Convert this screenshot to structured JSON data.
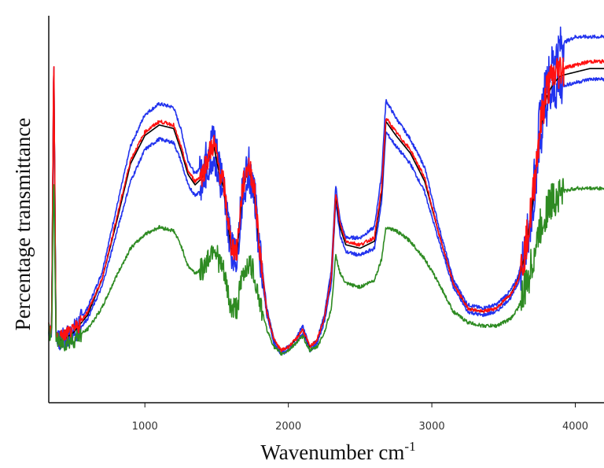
{
  "chart_data": {
    "type": "line",
    "title": "",
    "xlabel": "Wavenumber cm",
    "xlabel_sup": "-1",
    "ylabel": "Percentage transmittance",
    "xlim": [
      330,
      4200
    ],
    "ylim": [
      0,
      100
    ],
    "x_ticks": [
      1000,
      2000,
      3000,
      4000
    ],
    "x_tick_labels": [
      "1000",
      "2000",
      "3000",
      "4000"
    ],
    "y_tick_labels": [],
    "grid": false,
    "legend": "none",
    "series": [
      {
        "color": "#2233ee",
        "x": [
          350,
          365,
          380,
          400,
          430,
          500,
          600,
          700,
          800,
          900,
          1000,
          1100,
          1200,
          1250,
          1300,
          1350,
          1400,
          1450,
          1480,
          1520,
          1550,
          1600,
          1640,
          1680,
          1720,
          1760,
          1800,
          1850,
          1900,
          1950,
          2000,
          2050,
          2100,
          2150,
          2200,
          2250,
          2300,
          2330,
          2360,
          2400,
          2500,
          2600,
          2650,
          2680,
          2750,
          2850,
          2950,
          3050,
          3150,
          3250,
          3350,
          3450,
          3550,
          3600,
          3650,
          3700,
          3750,
          3800,
          3850,
          3900,
          4000,
          4100,
          4200
        ],
        "values": [
          12,
          90,
          10,
          8,
          9,
          11,
          17,
          27,
          45,
          63,
          72,
          75,
          74,
          68,
          59,
          55,
          58,
          64,
          67,
          59,
          54,
          36,
          34,
          52,
          60,
          54,
          35,
          17,
          8,
          5,
          6,
          8,
          12,
          6,
          8,
          15,
          28,
          52,
          42,
          37,
          37,
          40,
          55,
          76,
          71,
          65,
          57,
          40,
          25,
          18,
          17,
          18,
          22,
          26,
          34,
          48,
          70,
          82,
          88,
          92,
          94,
          94,
          94
        ],
        "noise": true
      },
      {
        "color": "#2233ee",
        "x": [
          350,
          365,
          380,
          400,
          430,
          500,
          600,
          700,
          800,
          900,
          1000,
          1100,
          1200,
          1250,
          1300,
          1350,
          1400,
          1450,
          1480,
          1520,
          1550,
          1600,
          1640,
          1680,
          1720,
          1760,
          1800,
          1850,
          1900,
          1950,
          2000,
          2050,
          2100,
          2150,
          2200,
          2250,
          2300,
          2330,
          2360,
          2400,
          2500,
          2600,
          2650,
          2680,
          2750,
          2850,
          2950,
          3050,
          3150,
          3250,
          3350,
          3450,
          3550,
          3600,
          3650,
          3700,
          3750,
          3800,
          3850,
          3900,
          4000,
          4100,
          4200
        ],
        "values": [
          10,
          85,
          9,
          7,
          8,
          9,
          14,
          23,
          38,
          53,
          62,
          65,
          64,
          59,
          52,
          49,
          51,
          57,
          60,
          52,
          48,
          32,
          30,
          47,
          54,
          49,
          31,
          15,
          7,
          4,
          5,
          7,
          10,
          5,
          7,
          13,
          24,
          47,
          38,
          33,
          32,
          34,
          47,
          67,
          63,
          58,
          50,
          36,
          23,
          16,
          15,
          16,
          20,
          24,
          31,
          44,
          63,
          74,
          78,
          80,
          81,
          82,
          82
        ],
        "noise": true
      },
      {
        "color": "#000000",
        "x": [
          350,
          365,
          380,
          400,
          430,
          500,
          600,
          700,
          800,
          900,
          1000,
          1100,
          1200,
          1250,
          1300,
          1350,
          1400,
          1450,
          1480,
          1520,
          1550,
          1600,
          1640,
          1680,
          1720,
          1760,
          1800,
          1850,
          1900,
          1950,
          2000,
          2050,
          2100,
          2150,
          2200,
          2250,
          2300,
          2330,
          2360,
          2400,
          2500,
          2600,
          2650,
          2680,
          2750,
          2850,
          2950,
          3050,
          3150,
          3250,
          3350,
          3450,
          3550,
          3600,
          3650,
          3700,
          3750,
          3800,
          3850,
          3900,
          4000,
          4100,
          4200
        ],
        "values": [
          11,
          88,
          10,
          8,
          8,
          10,
          15,
          25,
          41,
          58,
          66,
          69,
          68,
          62,
          55,
          52,
          54,
          60,
          63,
          55,
          51,
          34,
          32,
          50,
          57,
          51,
          33,
          16,
          8,
          5,
          6,
          8,
          11,
          6,
          8,
          14,
          26,
          49,
          40,
          35,
          34,
          36,
          50,
          70,
          66,
          61,
          53,
          38,
          24,
          17,
          16,
          17,
          21,
          25,
          32,
          46,
          66,
          77,
          81,
          83,
          84,
          85,
          85
        ],
        "noise": false
      },
      {
        "color": "#ff1111",
        "x": [
          350,
          365,
          380,
          400,
          430,
          500,
          600,
          700,
          800,
          900,
          1000,
          1100,
          1200,
          1250,
          1300,
          1350,
          1400,
          1450,
          1480,
          1520,
          1550,
          1600,
          1640,
          1680,
          1720,
          1760,
          1800,
          1850,
          1900,
          1950,
          2000,
          2050,
          2100,
          2150,
          2200,
          2250,
          2300,
          2330,
          2360,
          2400,
          2500,
          2600,
          2650,
          2680,
          2750,
          2850,
          2950,
          3050,
          3150,
          3250,
          3350,
          3450,
          3550,
          3600,
          3650,
          3700,
          3750,
          3800,
          3850,
          3900,
          4000,
          4100,
          4200
        ],
        "values": [
          11,
          89,
          10,
          8,
          9,
          10,
          16,
          25,
          42,
          59,
          67,
          70,
          69,
          63,
          56,
          53,
          55,
          61,
          64,
          56,
          52,
          35,
          33,
          51,
          58,
          52,
          34,
          16,
          8,
          5,
          6,
          8,
          11,
          6,
          8,
          14,
          26,
          50,
          41,
          36,
          35,
          37,
          51,
          71,
          67,
          62,
          54,
          38,
          24,
          17,
          16,
          17,
          21,
          25,
          33,
          47,
          67,
          79,
          83,
          85,
          86,
          87,
          87
        ],
        "noise": true
      },
      {
        "color": "#2e8b22",
        "x": [
          350,
          365,
          380,
          400,
          430,
          500,
          600,
          700,
          800,
          900,
          1000,
          1100,
          1200,
          1250,
          1300,
          1350,
          1400,
          1450,
          1480,
          1520,
          1550,
          1600,
          1640,
          1680,
          1720,
          1760,
          1800,
          1850,
          1900,
          1950,
          2000,
          2050,
          2100,
          2150,
          2200,
          2250,
          2300,
          2330,
          2360,
          2400,
          2500,
          2600,
          2650,
          2680,
          2750,
          2850,
          2950,
          3050,
          3150,
          3250,
          3350,
          3450,
          3550,
          3600,
          3650,
          3700,
          3750,
          3800,
          3850,
          3900,
          4000,
          4100,
          4200
        ],
        "values": [
          10,
          55,
          9,
          7,
          7,
          8,
          11,
          17,
          26,
          34,
          38,
          40,
          39,
          35,
          29,
          27,
          28,
          32,
          35,
          30,
          27,
          17,
          17,
          26,
          30,
          27,
          19,
          11,
          6,
          4,
          5,
          7,
          9,
          5,
          6,
          10,
          17,
          32,
          27,
          24,
          23,
          25,
          31,
          40,
          39,
          36,
          31,
          24,
          16,
          13,
          12,
          12,
          14,
          17,
          22,
          30,
          39,
          45,
          48,
          50,
          51,
          51,
          51
        ],
        "noise": true
      }
    ]
  }
}
